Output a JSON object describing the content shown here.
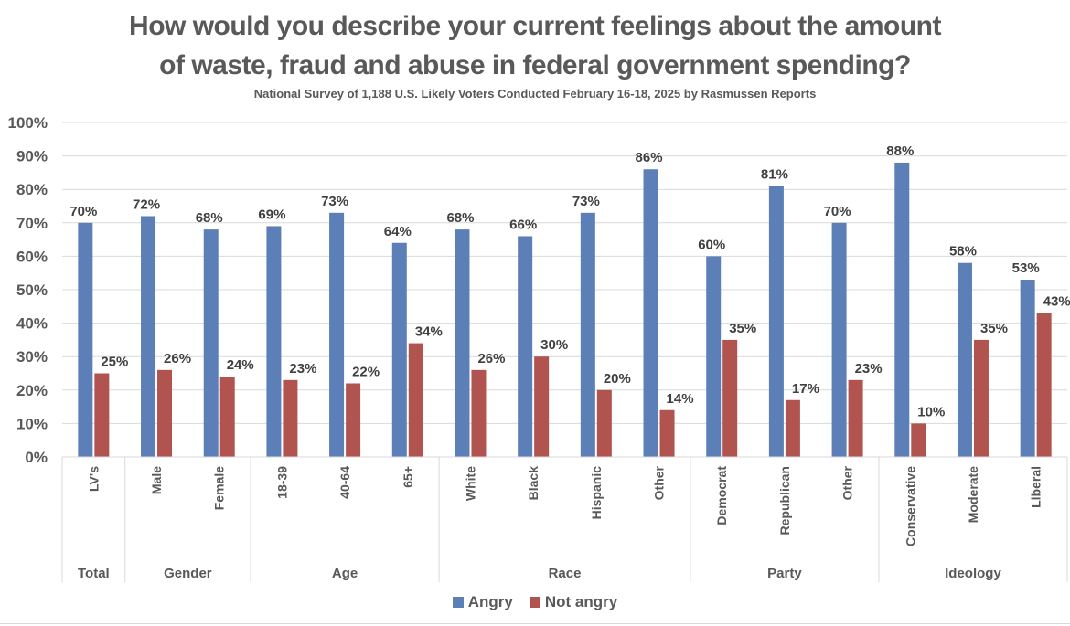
{
  "chart_data": {
    "type": "bar",
    "title": "How would you describe your current feelings about the amount of waste, fraud and abuse in federal government spending?",
    "title_lines": [
      "How would you describe your current feelings about the amount",
      "of waste, fraud and abuse in federal government spending?"
    ],
    "subtitle": "National Survey of 1,188 U.S. Likely Voters Conducted February 16-18, 2025 by Rasmussen Reports",
    "xlabel": "",
    "ylabel": "",
    "ylim": [
      0,
      100
    ],
    "yticks": [
      "0%",
      "10%",
      "20%",
      "30%",
      "40%",
      "50%",
      "60%",
      "70%",
      "80%",
      "90%",
      "100%"
    ],
    "grid": true,
    "legend_position": "bottom-center",
    "categories": [
      "LV's",
      "Male",
      "Female",
      "18-39",
      "40-64",
      "65+",
      "White",
      "Black",
      "Hispanic",
      "Other",
      "Democrat",
      "Republican",
      "Other",
      "Conservative",
      "Moderate",
      "Liberal"
    ],
    "groups": [
      {
        "label": "Total",
        "count": 1
      },
      {
        "label": "Gender",
        "count": 2
      },
      {
        "label": "Age",
        "count": 3
      },
      {
        "label": "Race",
        "count": 4
      },
      {
        "label": "Party",
        "count": 3
      },
      {
        "label": "Ideology",
        "count": 3
      }
    ],
    "series": [
      {
        "name": "Angry",
        "color": "#5b7fb6",
        "values": [
          70,
          72,
          68,
          69,
          73,
          64,
          68,
          66,
          73,
          86,
          60,
          81,
          70,
          88,
          58,
          53
        ]
      },
      {
        "name": "Not angry",
        "color": "#b15450",
        "values": [
          25,
          26,
          24,
          23,
          22,
          34,
          26,
          30,
          20,
          14,
          35,
          17,
          23,
          10,
          35,
          43
        ]
      }
    ],
    "value_suffix": "%"
  }
}
